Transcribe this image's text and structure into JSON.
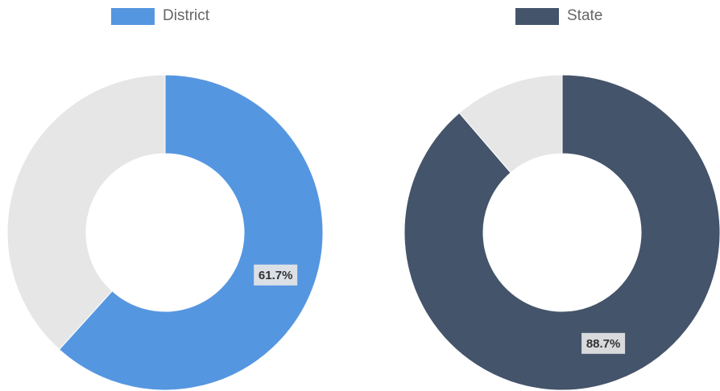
{
  "chart_data": [
    {
      "type": "pie",
      "variant": "doughnut",
      "legend": "top",
      "legend_entries": [
        "District"
      ],
      "slices": [
        {
          "label": "District",
          "value": 61.7,
          "color": "#5596e0"
        },
        {
          "label": "",
          "value": 38.3,
          "color": "#e6e6e6"
        }
      ],
      "data_label": "61.7%"
    },
    {
      "type": "pie",
      "variant": "doughnut",
      "legend": "top",
      "legend_entries": [
        "State"
      ],
      "slices": [
        {
          "label": "State",
          "value": 88.7,
          "color": "#44546a"
        },
        {
          "label": "",
          "value": 11.3,
          "color": "#e6e6e6"
        }
      ],
      "data_label": "88.7%"
    }
  ]
}
